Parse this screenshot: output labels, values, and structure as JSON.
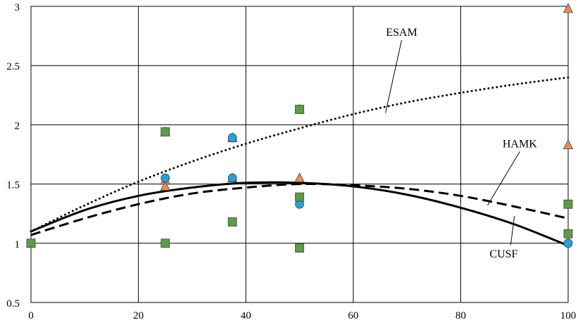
{
  "chart_data": {
    "type": "scatter",
    "title": "",
    "xlabel": "",
    "ylabel": "",
    "xlim": [
      0,
      100
    ],
    "ylim": [
      0.5,
      3
    ],
    "grid": true,
    "x_ticks": [
      0,
      20,
      40,
      60,
      80,
      100
    ],
    "y_ticks": [
      0.5,
      1,
      1.5,
      2,
      2.5,
      3
    ],
    "x_tick_labels": [
      "0",
      "20",
      "40",
      "60",
      "80",
      "100"
    ],
    "y_tick_labels": [
      "0.5",
      "1",
      "1.5",
      "2",
      "2.5",
      "3"
    ],
    "series": [
      {
        "marker": "triangle",
        "color": "#f08c50",
        "points": [
          [
            0,
            1.0
          ],
          [
            25,
            1.94
          ],
          [
            25,
            1.53
          ],
          [
            25,
            1.48
          ],
          [
            37.5,
            1.89
          ],
          [
            37.5,
            1.55
          ],
          [
            50,
            2.13
          ],
          [
            50,
            1.55
          ],
          [
            100,
            2.98
          ],
          [
            100,
            1.83
          ]
        ]
      },
      {
        "marker": "circle",
        "color": "#2a9fd8",
        "points": [
          [
            0,
            1.0
          ],
          [
            25,
            1.55
          ],
          [
            37.5,
            1.89
          ],
          [
            37.5,
            1.55
          ],
          [
            50,
            2.13
          ],
          [
            50,
            1.33
          ],
          [
            100,
            1.0
          ]
        ]
      },
      {
        "marker": "square",
        "color": "#5f9a4a",
        "points": [
          [
            0,
            1.0
          ],
          [
            25,
            1.94
          ],
          [
            25,
            1.0
          ],
          [
            37.5,
            1.18
          ],
          [
            50,
            2.13
          ],
          [
            50,
            1.39
          ],
          [
            50,
            0.96
          ],
          [
            100,
            1.33
          ],
          [
            100,
            1.08
          ]
        ]
      },
      {
        "name": "ESAM",
        "style": "dotted",
        "type": "line",
        "x": [
          0,
          10,
          20,
          30,
          40,
          50,
          60,
          70,
          80,
          90,
          100
        ],
        "y": [
          1.1,
          1.32,
          1.52,
          1.69,
          1.84,
          1.97,
          2.09,
          2.19,
          2.27,
          2.34,
          2.4
        ]
      },
      {
        "name": "HAMK",
        "style": "dashed",
        "type": "line",
        "x": [
          0,
          10,
          20,
          30,
          40,
          50,
          60,
          70,
          80,
          90,
          100
        ],
        "y": [
          1.07,
          1.21,
          1.33,
          1.42,
          1.47,
          1.5,
          1.49,
          1.46,
          1.4,
          1.31,
          1.21
        ]
      },
      {
        "name": "CUSF",
        "style": "solid",
        "type": "line",
        "x": [
          0,
          10,
          20,
          30,
          40,
          50,
          60,
          70,
          80,
          90,
          100
        ],
        "y": [
          1.1,
          1.28,
          1.4,
          1.47,
          1.51,
          1.51,
          1.48,
          1.41,
          1.3,
          1.16,
          0.98
        ]
      }
    ],
    "annotations": [
      {
        "text": "ESAM",
        "x": 69,
        "y": 2.75,
        "target": [
          66,
          2.1
        ]
      },
      {
        "text": "HAMK",
        "x": 91,
        "y": 1.81,
        "target": [
          85,
          1.32
        ]
      },
      {
        "text": "CUSF",
        "x": 88,
        "y": 0.88,
        "target": [
          90,
          1.23
        ]
      }
    ]
  }
}
